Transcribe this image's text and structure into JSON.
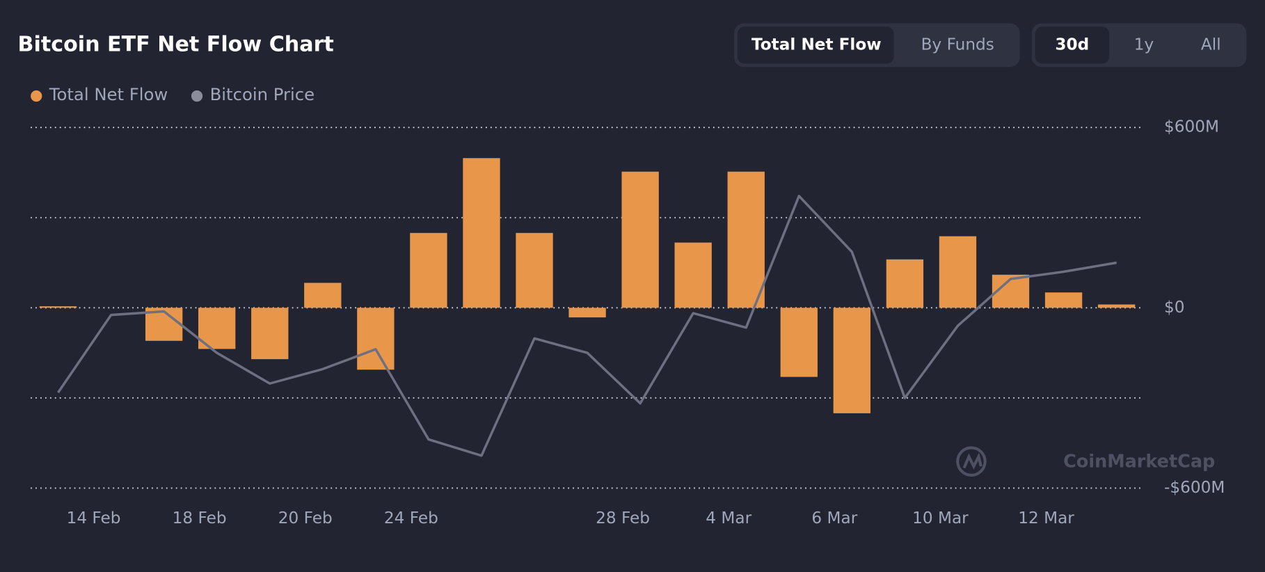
{
  "header": {
    "title": "Bitcoin ETF Net Flow Chart",
    "view_buttons": [
      "Total Net Flow",
      "By Funds"
    ],
    "active_view": "Total Net Flow",
    "range_buttons": [
      "30d",
      "1y",
      "All"
    ],
    "active_range": "30d"
  },
  "watermark": "CoinMarketCap",
  "chart_data": {
    "type": "bar",
    "categories": [
      "14 Feb",
      null,
      "18 Feb",
      null,
      "20 Feb",
      null,
      "24 Feb",
      null,
      null,
      null,
      "28 Feb",
      null,
      "4 Mar",
      null,
      "6 Mar",
      null,
      "10 Mar",
      null,
      "12 Mar",
      null,
      null
    ],
    "series": [
      {
        "name": "Total Net Flow",
        "type": "bar",
        "color": "#e8964a",
        "values": [
          5,
          null,
          -110,
          -137,
          -171,
          83,
          -206,
          249,
          498,
          249,
          -32,
          453,
          217,
          453,
          -230,
          -351,
          161,
          238,
          110,
          51,
          11
        ]
      },
      {
        "name": "Bitcoin Price",
        "type": "line",
        "axis": "y2",
        "color": "#6e7081",
        "values": [
          85300,
          89600,
          89800,
          87500,
          85800,
          86600,
          87700,
          82700,
          81800,
          88300,
          87500,
          84700,
          89700,
          88900,
          96200,
          93100,
          85000,
          89000,
          91600,
          92000,
          92500
        ]
      }
    ],
    "ylim": [
      -600,
      600
    ],
    "yticks": [
      {
        "value": 600,
        "label": "$600M"
      },
      {
        "value": 0,
        "label": "$0"
      },
      {
        "value": -600,
        "label": "-$600M"
      }
    ],
    "ygrid": [
      600,
      300,
      0,
      -300,
      -600
    ],
    "y2lim": [
      80000,
      100000
    ],
    "legend": "top-left"
  }
}
